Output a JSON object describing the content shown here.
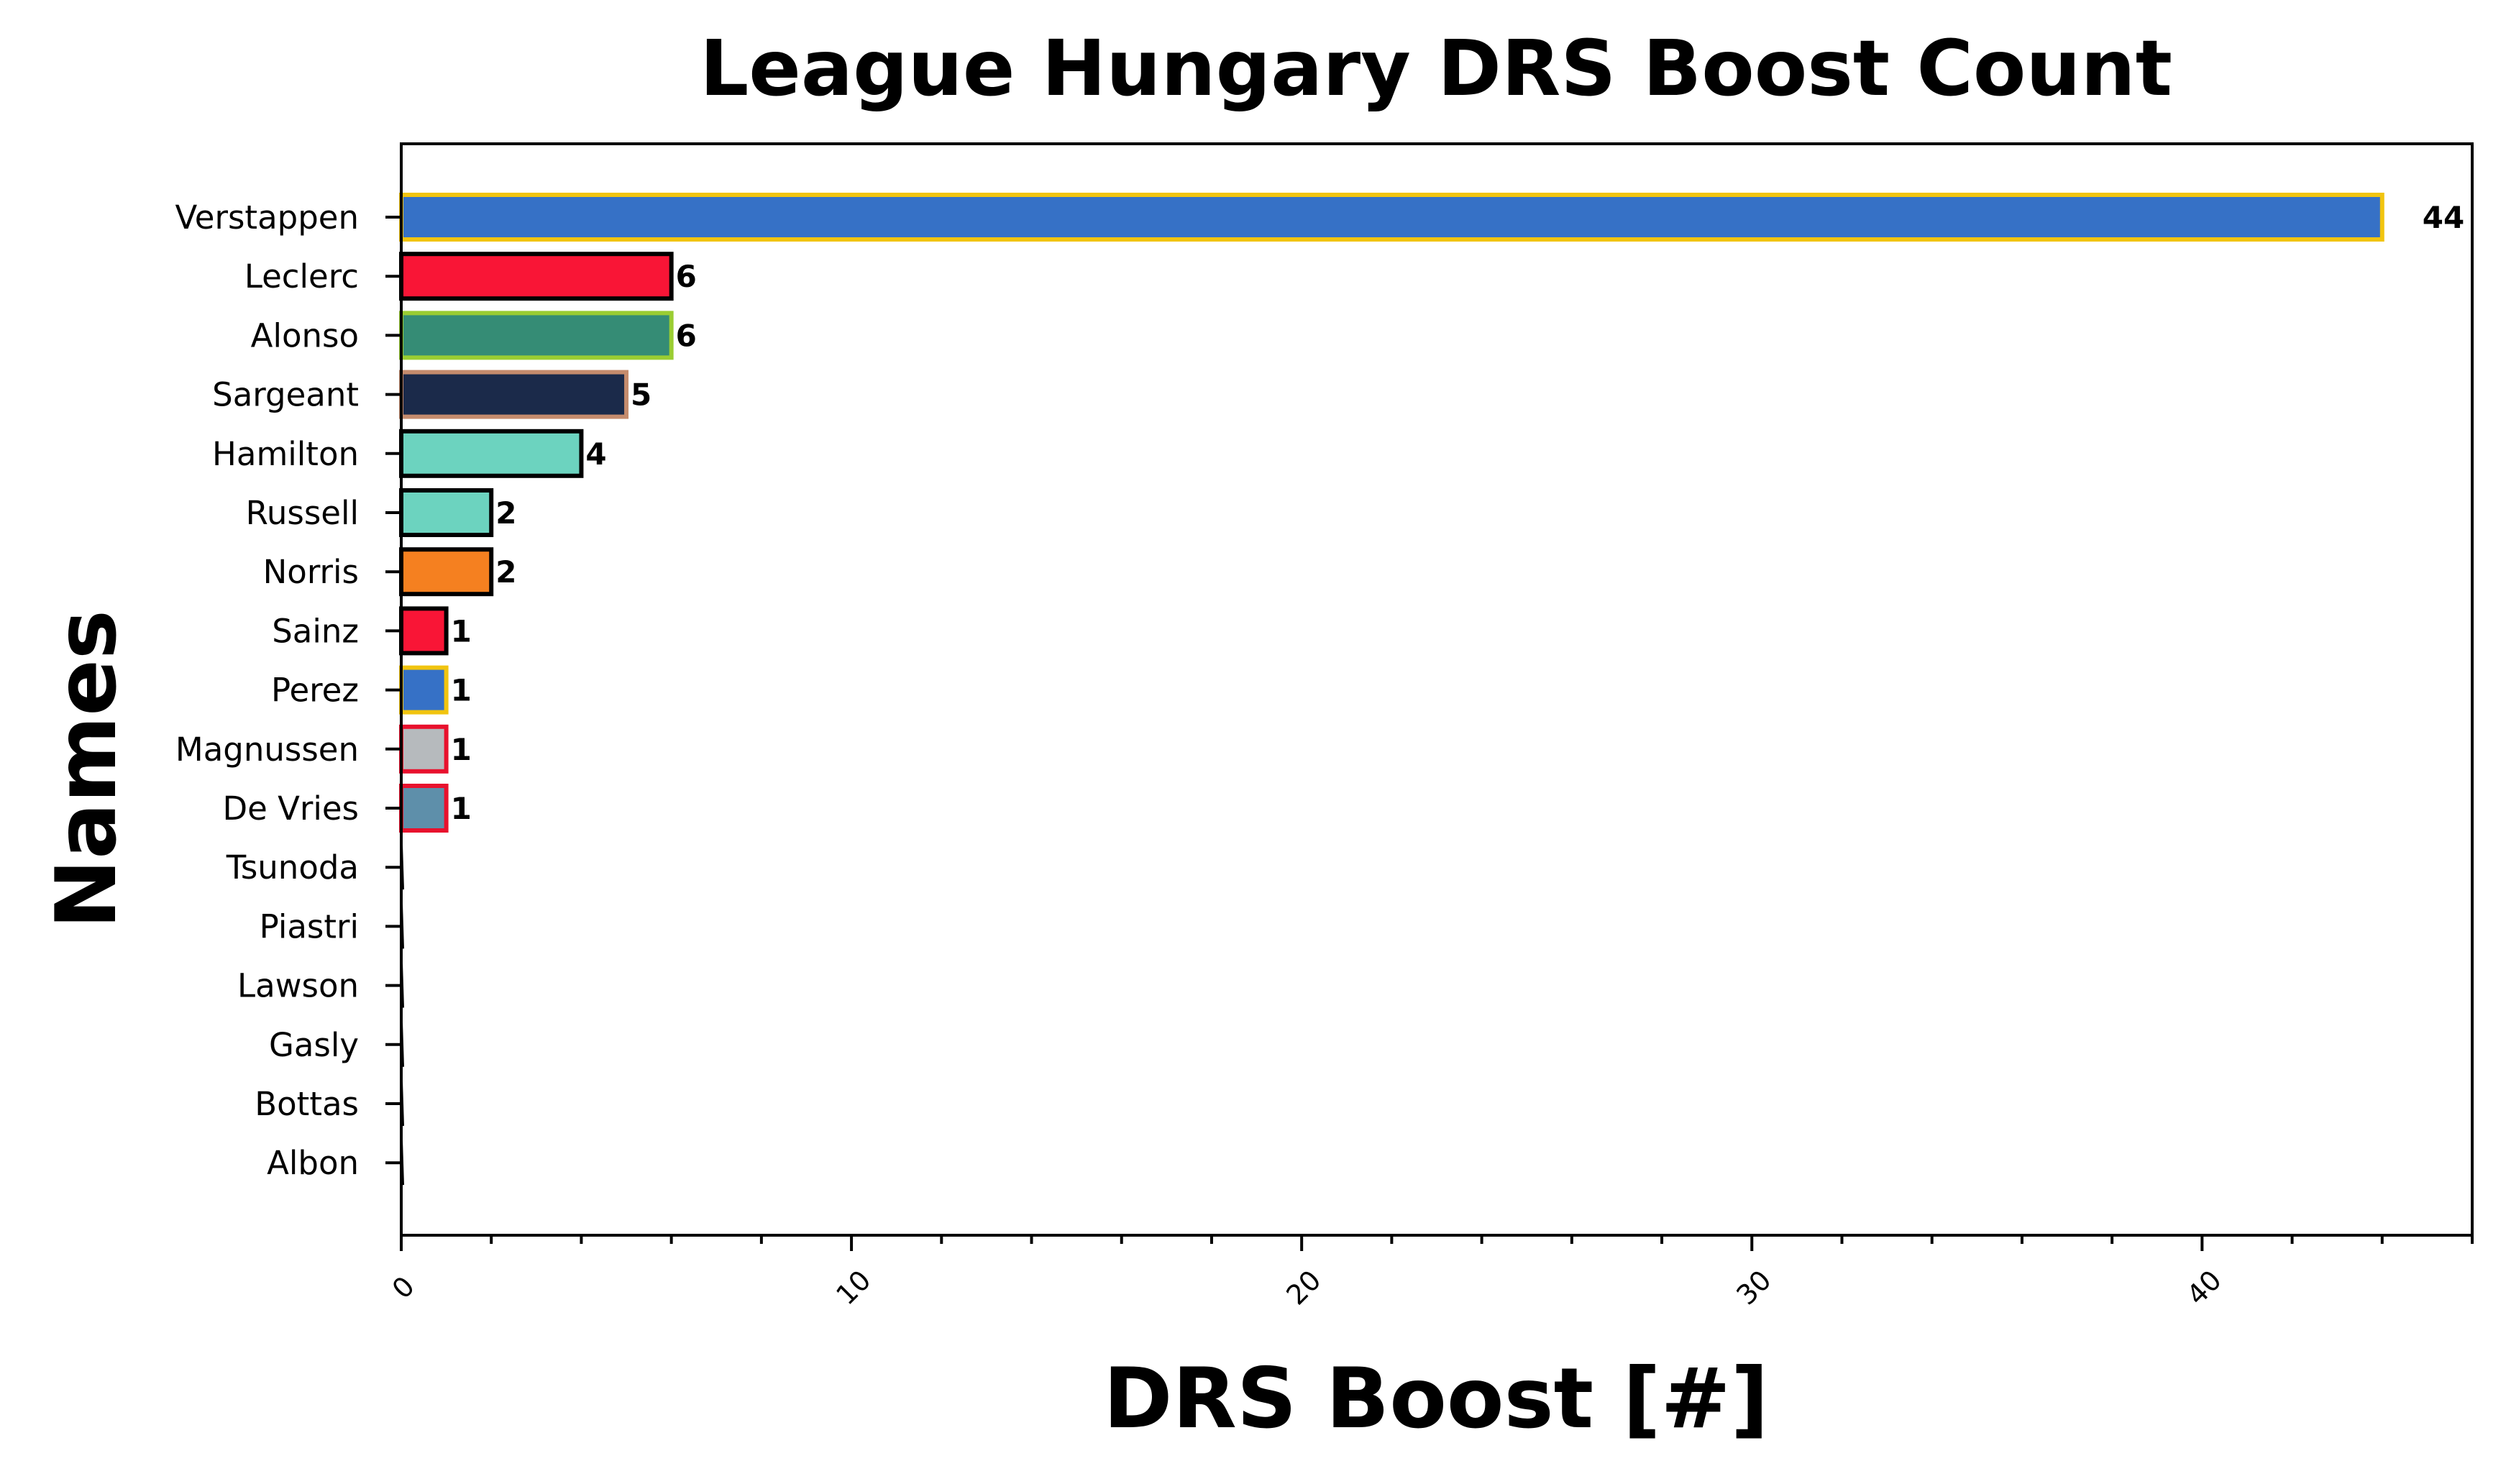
{
  "chart_data": {
    "type": "bar",
    "orientation": "horizontal",
    "title": "League Hungary DRS Boost Count",
    "xlabel": "DRS Boost [#]",
    "ylabel": "Names",
    "xlim": [
      0,
      46
    ],
    "xticks": [
      0,
      10,
      20,
      30,
      40
    ],
    "xtick_labels": [
      "0",
      "10",
      "20",
      "30",
      "40"
    ],
    "grid": false,
    "categories": [
      "Verstappen",
      "Leclerc",
      "Alonso",
      "Sargeant",
      "Hamilton",
      "Russell",
      "Norris",
      "Sainz",
      "Perez",
      "Magnussen",
      "De Vries",
      "Tsunoda",
      "Piastri",
      "Lawson",
      "Gasly",
      "Bottas",
      "Albon"
    ],
    "values": [
      44,
      6,
      6,
      5,
      4,
      2,
      2,
      1,
      1,
      1,
      1,
      0,
      0,
      0,
      0,
      0,
      0
    ],
    "value_labels": [
      "44",
      "6",
      "6",
      "5",
      "4",
      "2",
      "2",
      "1",
      "1",
      "1",
      "1",
      "",
      "",
      "",
      "",
      "",
      ""
    ],
    "fill_colors": [
      "#3671c6",
      "#f91536",
      "#358c75",
      "#1b2a4a",
      "#6cd3bf",
      "#6cd3bf",
      "#f58020",
      "#f91536",
      "#3671c6",
      "#b6babd",
      "#5e8faa",
      "#5e8faa",
      "#f58020",
      "#5e8faa",
      "#2293d1",
      "#c92d4b",
      "#37bedd"
    ],
    "edge_colors": [
      "#f1c40f",
      "#000000",
      "#9acd32",
      "#c48b6d",
      "#000000",
      "#000000",
      "#000000",
      "#000000",
      "#f1c40f",
      "#e8112d",
      "#e8112d",
      "#000000",
      "#000000",
      "#000000",
      "#000000",
      "#000000",
      "#000000"
    ]
  }
}
